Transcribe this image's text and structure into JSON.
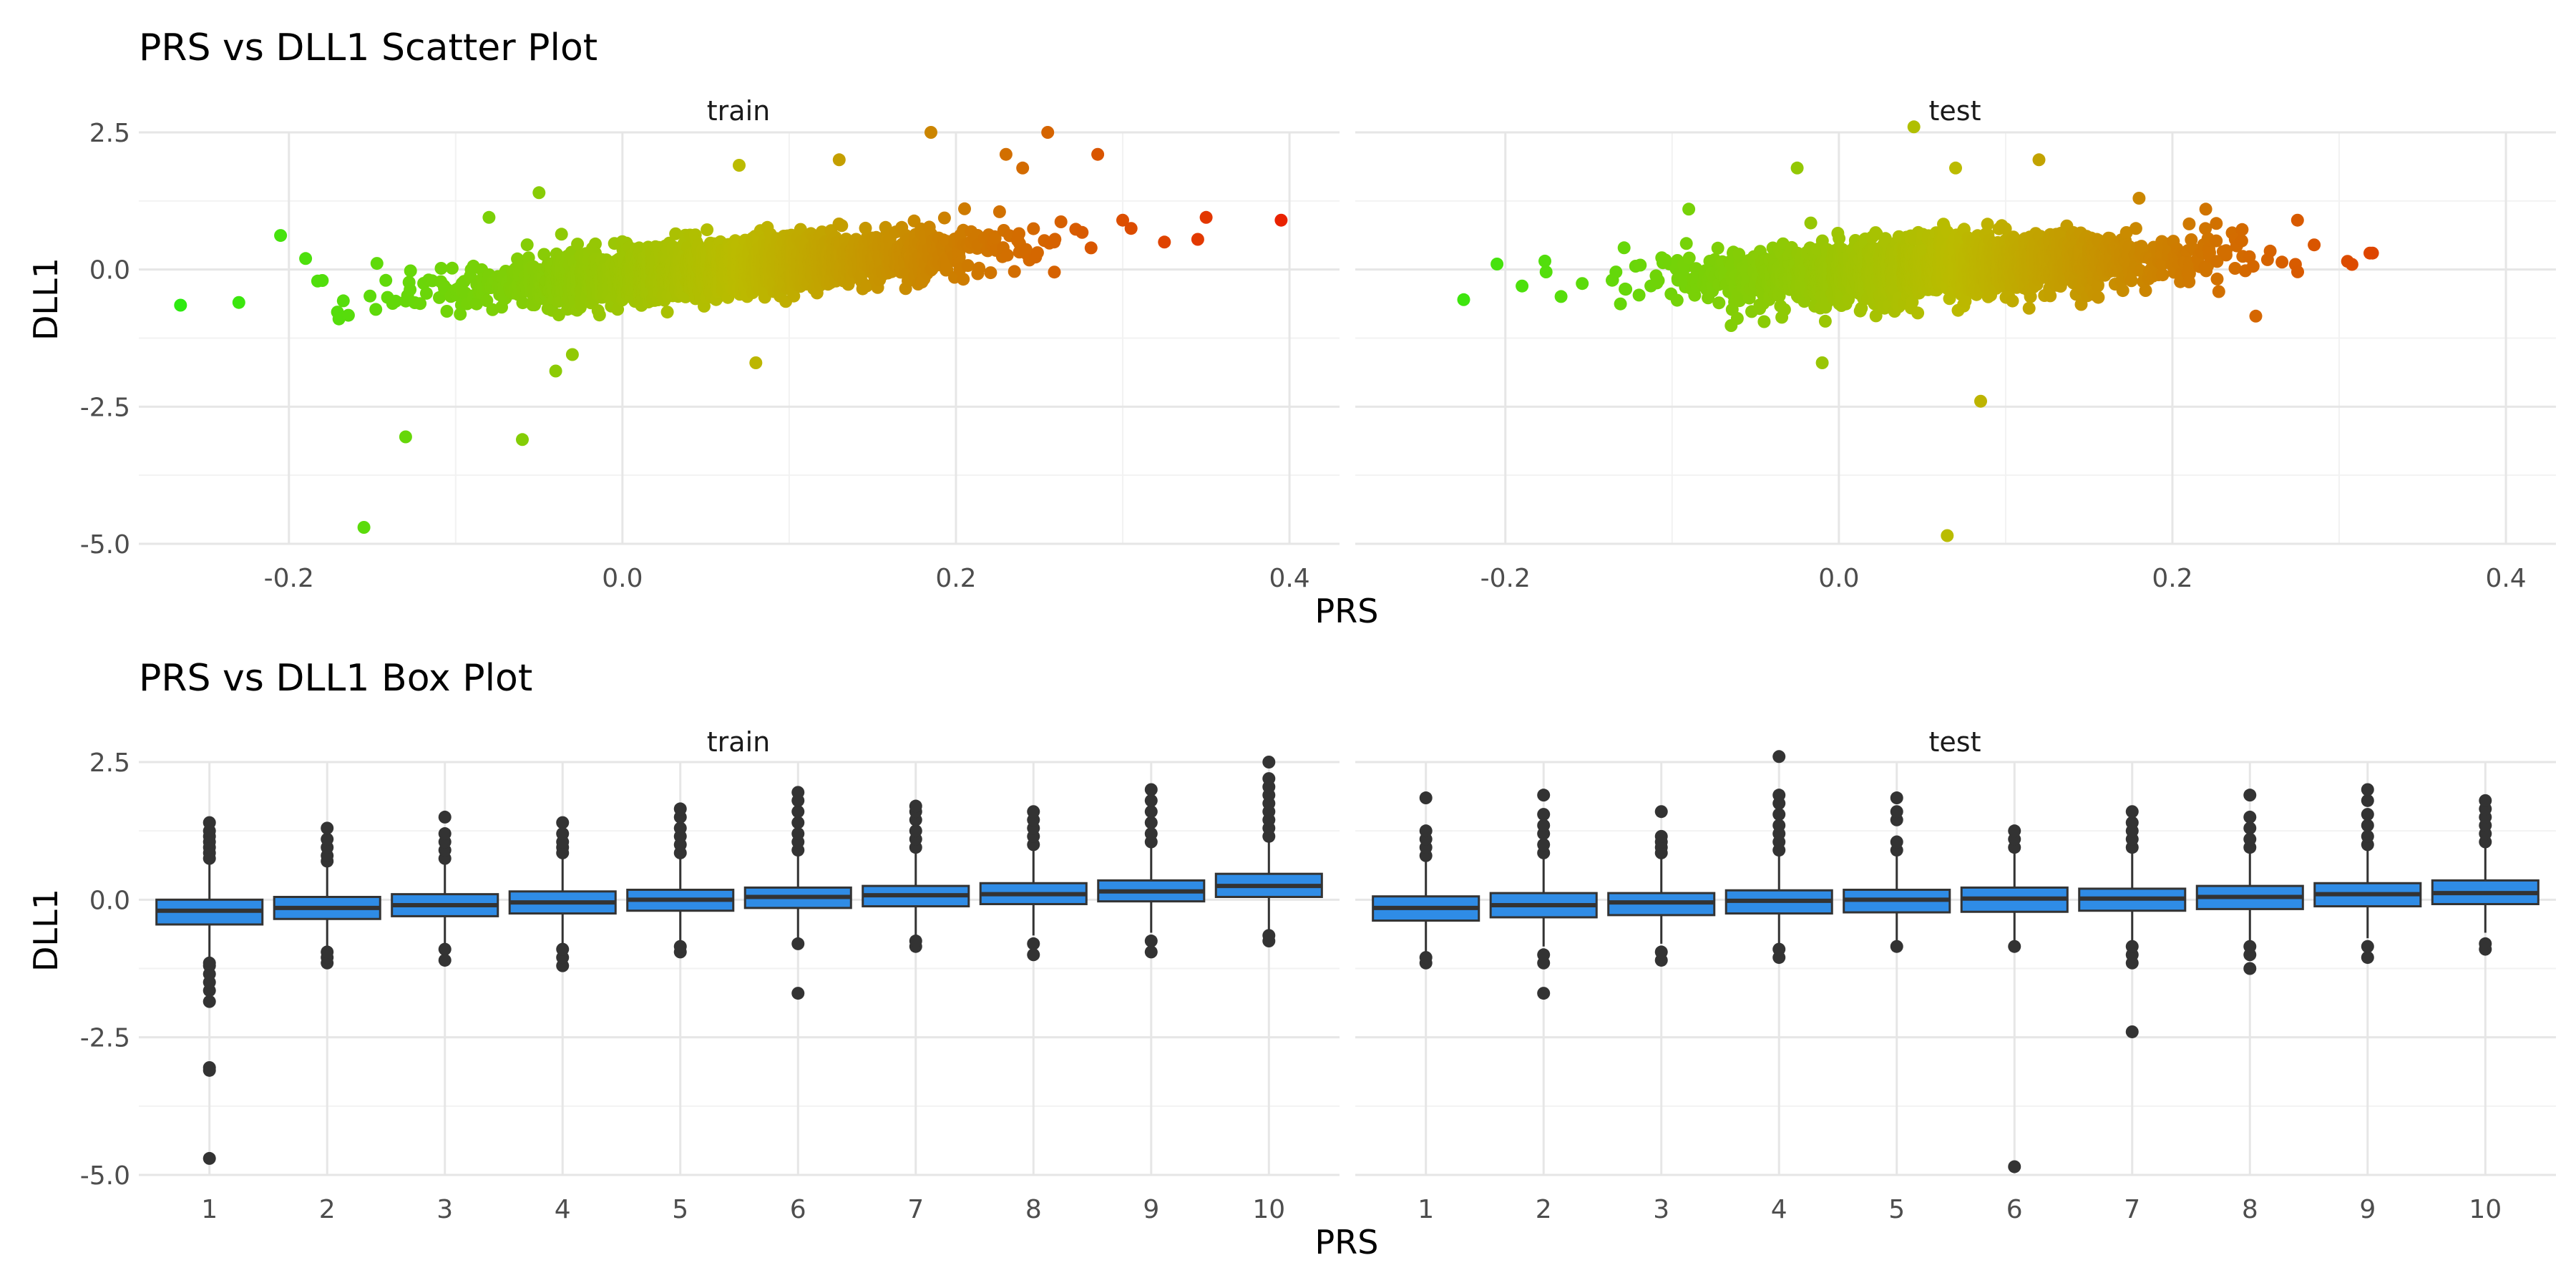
{
  "chart_data": [
    {
      "type": "scatter",
      "title": "PRS vs DLL1 Scatter Plot",
      "xlabel": "PRS",
      "ylabel": "DLL1",
      "xlim": [
        -0.29,
        0.43
      ],
      "ylim": [
        -5.0,
        2.5
      ],
      "x_ticks": [
        "-0.2",
        "0.0",
        "0.2",
        "0.4"
      ],
      "x_tick_values": [
        -0.2,
        0.0,
        0.2,
        0.4
      ],
      "y_ticks": [
        "2.5",
        "0.0",
        "-2.5",
        "-5.0"
      ],
      "y_tick_values": [
        2.5,
        0.0,
        -2.5,
        -5.0
      ],
      "grid": true,
      "color_scale": {
        "low": "#22ee11",
        "mid": "#bbbb00",
        "high": "#ee1100",
        "by": "PRS"
      },
      "panels": [
        {
          "name": "train",
          "cloud": {
            "x_mean": 0.06,
            "x_sd": 0.07,
            "slope": 4.5,
            "resid_sd": 0.22,
            "n": 3200,
            "seed": 11
          },
          "outliers": [
            {
              "x": -0.265,
              "y": -0.65
            },
            {
              "x": -0.205,
              "y": 0.62
            },
            {
              "x": -0.23,
              "y": -0.6
            },
            {
              "x": -0.13,
              "y": -3.05
            },
            {
              "x": -0.06,
              "y": -3.1
            },
            {
              "x": -0.155,
              "y": -4.7
            },
            {
              "x": -0.04,
              "y": -1.85
            },
            {
              "x": 0.08,
              "y": -1.7
            },
            {
              "x": 0.185,
              "y": 2.5
            },
            {
              "x": 0.255,
              "y": 2.5
            },
            {
              "x": 0.285,
              "y": 2.1
            },
            {
              "x": 0.35,
              "y": 0.95
            },
            {
              "x": 0.395,
              "y": 0.9
            },
            {
              "x": 0.345,
              "y": 0.55
            },
            {
              "x": 0.305,
              "y": 0.75
            },
            {
              "x": 0.325,
              "y": 0.5
            },
            {
              "x": 0.3,
              "y": 0.9
            },
            {
              "x": 0.24,
              "y": 1.85
            },
            {
              "x": 0.23,
              "y": 2.1
            },
            {
              "x": 0.13,
              "y": 2.0
            },
            {
              "x": 0.07,
              "y": 1.9
            },
            {
              "x": -0.18,
              "y": -0.2
            },
            {
              "x": -0.19,
              "y": 0.2
            },
            {
              "x": -0.17,
              "y": -0.9
            },
            {
              "x": -0.05,
              "y": 1.4
            },
            {
              "x": -0.08,
              "y": 0.95
            },
            {
              "x": -0.03,
              "y": -1.55
            }
          ]
        },
        {
          "name": "test",
          "cloud": {
            "x_mean": 0.06,
            "x_sd": 0.07,
            "slope": 2.8,
            "resid_sd": 0.26,
            "n": 2400,
            "seed": 29
          },
          "outliers": [
            {
              "x": -0.225,
              "y": -0.55
            },
            {
              "x": -0.205,
              "y": 0.1
            },
            {
              "x": 0.045,
              "y": 2.6
            },
            {
              "x": 0.065,
              "y": -4.85
            },
            {
              "x": 0.085,
              "y": -2.4
            },
            {
              "x": -0.01,
              "y": -1.7
            },
            {
              "x": 0.32,
              "y": 0.3
            },
            {
              "x": 0.305,
              "y": 0.15
            },
            {
              "x": 0.285,
              "y": 0.45
            },
            {
              "x": 0.275,
              "y": 0.9
            },
            {
              "x": 0.12,
              "y": 2.0
            },
            {
              "x": 0.07,
              "y": 1.85
            },
            {
              "x": -0.025,
              "y": 1.85
            },
            {
              "x": -0.09,
              "y": 1.1
            },
            {
              "x": -0.19,
              "y": -0.3
            },
            {
              "x": 0.25,
              "y": -0.85
            },
            {
              "x": 0.18,
              "y": 1.3
            },
            {
              "x": 0.22,
              "y": 1.1
            }
          ]
        }
      ]
    },
    {
      "type": "box",
      "title": "PRS vs DLL1 Box Plot",
      "xlabel": "PRS",
      "ylabel": "DLL1",
      "categories": [
        "1",
        "2",
        "3",
        "4",
        "5",
        "6",
        "7",
        "8",
        "9",
        "10"
      ],
      "ylim": [
        -5.0,
        2.5
      ],
      "y_ticks": [
        "2.5",
        "0.0",
        "-2.5",
        "-5.0"
      ],
      "y_tick_values": [
        2.5,
        0.0,
        -2.5,
        -5.0
      ],
      "grid": true,
      "box_fill": "#2f8ce6",
      "panels": [
        {
          "name": "train",
          "boxes": [
            {
              "q1": -0.45,
              "median": -0.2,
              "q3": 0.0,
              "whisker_low": -1.05,
              "whisker_high": 0.65,
              "outliers": [
                -4.7,
                -3.1,
                -3.05,
                -1.85,
                -1.65,
                -1.5,
                -1.35,
                -1.2,
                -1.15,
                0.75,
                0.85,
                0.95,
                1.05,
                1.15,
                1.25,
                1.4
              ]
            },
            {
              "q1": -0.35,
              "median": -0.15,
              "q3": 0.05,
              "whisker_low": -0.85,
              "whisker_high": 0.6,
              "outliers": [
                -1.15,
                -1.05,
                -0.95,
                0.7,
                0.8,
                0.95,
                1.1,
                1.3
              ]
            },
            {
              "q1": -0.3,
              "median": -0.1,
              "q3": 0.1,
              "whisker_low": -0.8,
              "whisker_high": 0.65,
              "outliers": [
                -1.1,
                -0.9,
                0.75,
                0.9,
                1.05,
                1.2,
                1.5
              ]
            },
            {
              "q1": -0.25,
              "median": -0.05,
              "q3": 0.15,
              "whisker_low": -0.8,
              "whisker_high": 0.75,
              "outliers": [
                -1.2,
                -1.05,
                -0.9,
                0.85,
                0.95,
                1.05,
                1.2,
                1.4
              ]
            },
            {
              "q1": -0.2,
              "median": 0.0,
              "q3": 0.18,
              "whisker_low": -0.8,
              "whisker_high": 0.75,
              "outliers": [
                -0.95,
                -0.85,
                0.85,
                1.0,
                1.15,
                1.3,
                1.5,
                1.65
              ]
            },
            {
              "q1": -0.15,
              "median": 0.05,
              "q3": 0.22,
              "whisker_low": -0.7,
              "whisker_high": 0.8,
              "outliers": [
                -1.7,
                -0.8,
                0.9,
                1.05,
                1.2,
                1.4,
                1.6,
                1.8,
                1.95
              ]
            },
            {
              "q1": -0.12,
              "median": 0.08,
              "q3": 0.25,
              "whisker_low": -0.7,
              "whisker_high": 0.85,
              "outliers": [
                -0.85,
                -0.75,
                0.95,
                1.1,
                1.25,
                1.45,
                1.6,
                1.7
              ]
            },
            {
              "q1": -0.08,
              "median": 0.1,
              "q3": 0.3,
              "whisker_low": -0.65,
              "whisker_high": 0.9,
              "outliers": [
                -1.0,
                -0.8,
                1.0,
                1.15,
                1.3,
                1.45,
                1.6
              ]
            },
            {
              "q1": -0.03,
              "median": 0.15,
              "q3": 0.35,
              "whisker_low": -0.6,
              "whisker_high": 0.95,
              "outliers": [
                -0.95,
                -0.75,
                1.05,
                1.2,
                1.4,
                1.6,
                1.8,
                2.0
              ]
            },
            {
              "q1": 0.05,
              "median": 0.25,
              "q3": 0.47,
              "whisker_low": -0.55,
              "whisker_high": 1.05,
              "outliers": [
                -0.75,
                -0.65,
                1.15,
                1.3,
                1.45,
                1.6,
                1.75,
                1.9,
                2.05,
                2.2,
                2.5
              ]
            }
          ]
        },
        {
          "name": "test",
          "boxes": [
            {
              "q1": -0.38,
              "median": -0.15,
              "q3": 0.06,
              "whisker_low": -1.0,
              "whisker_high": 0.7,
              "outliers": [
                -1.15,
                -1.05,
                0.8,
                0.95,
                1.1,
                1.25,
                1.85
              ]
            },
            {
              "q1": -0.32,
              "median": -0.1,
              "q3": 0.12,
              "whisker_low": -0.85,
              "whisker_high": 0.75,
              "outliers": [
                -1.7,
                -1.15,
                -1.0,
                0.85,
                1.0,
                1.2,
                1.35,
                1.55,
                1.9
              ]
            },
            {
              "q1": -0.28,
              "median": -0.05,
              "q3": 0.12,
              "whisker_low": -0.8,
              "whisker_high": 0.75,
              "outliers": [
                -1.1,
                -0.95,
                0.85,
                0.95,
                1.05,
                1.15,
                1.6
              ]
            },
            {
              "q1": -0.25,
              "median": -0.02,
              "q3": 0.17,
              "whisker_low": -0.8,
              "whisker_high": 0.8,
              "outliers": [
                -1.05,
                -0.9,
                0.9,
                1.05,
                1.2,
                1.35,
                1.55,
                1.75,
                1.9,
                2.6
              ]
            },
            {
              "q1": -0.23,
              "median": 0.0,
              "q3": 0.18,
              "whisker_low": -0.75,
              "whisker_high": 0.8,
              "outliers": [
                -0.85,
                0.9,
                1.05,
                1.45,
                1.6,
                1.85
              ]
            },
            {
              "q1": -0.22,
              "median": 0.02,
              "q3": 0.22,
              "whisker_low": -0.75,
              "whisker_high": 0.85,
              "outliers": [
                -4.85,
                -0.85,
                0.95,
                1.1,
                1.25
              ]
            },
            {
              "q1": -0.2,
              "median": 0.02,
              "q3": 0.2,
              "whisker_low": -0.75,
              "whisker_high": 0.85,
              "outliers": [
                -2.4,
                -1.15,
                -1.0,
                -0.85,
                0.95,
                1.1,
                1.25,
                1.4,
                1.6
              ]
            },
            {
              "q1": -0.17,
              "median": 0.05,
              "q3": 0.25,
              "whisker_low": -0.75,
              "whisker_high": 0.85,
              "outliers": [
                -1.25,
                -1.0,
                -0.85,
                0.95,
                1.1,
                1.3,
                1.5,
                1.9
              ]
            },
            {
              "q1": -0.12,
              "median": 0.1,
              "q3": 0.3,
              "whisker_low": -0.7,
              "whisker_high": 0.9,
              "outliers": [
                -1.05,
                -0.85,
                1.0,
                1.15,
                1.35,
                1.55,
                1.8,
                2.0
              ]
            },
            {
              "q1": -0.08,
              "median": 0.12,
              "q3": 0.35,
              "whisker_low": -0.6,
              "whisker_high": 0.95,
              "outliers": [
                -0.9,
                -0.8,
                1.05,
                1.2,
                1.35,
                1.5,
                1.65,
                1.8
              ]
            }
          ]
        }
      ]
    }
  ]
}
